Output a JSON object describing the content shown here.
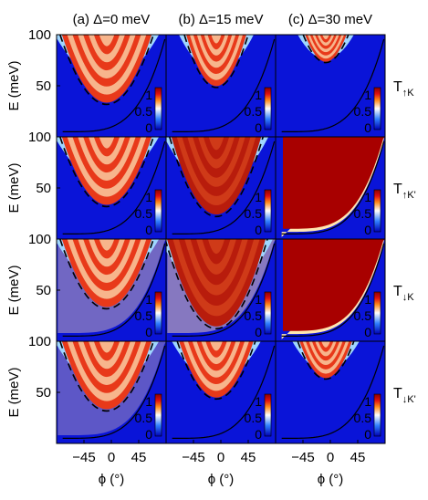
{
  "chart_data": {
    "type": "heatmap",
    "columns": [
      {
        "title": "(a) Δ=0 meV",
        "delta_meV": 0
      },
      {
        "title": "(b) Δ=15 meV",
        "delta_meV": 15
      },
      {
        "title": "(c) Δ=30 meV",
        "delta_meV": 30
      }
    ],
    "rows": [
      {
        "label": "T↑K"
      },
      {
        "label": "T↑K'"
      },
      {
        "label": "T↓K"
      },
      {
        "label": "T↓K'"
      }
    ],
    "xlabel": "ϕ (°)",
    "ylabel": "E (meV)",
    "xticks": [
      "−45",
      "0",
      "45"
    ],
    "xtick_values": [
      -45,
      0,
      45
    ],
    "yticks": [
      "100",
      "50"
    ],
    "ytick_values": [
      100,
      50
    ],
    "xlim": [
      -90,
      90
    ],
    "ylim": [
      0,
      100
    ],
    "colorbar": {
      "ticks": [
        "1",
        "0.5",
        "0"
      ],
      "range": [
        0,
        1
      ]
    },
    "colormap": [
      "#0000b4",
      "#2f7fff",
      "#ffffff",
      "#ff8a1a",
      "#e01010",
      "#8b0000"
    ],
    "panel_bg": "#0a14d8",
    "panels": [
      [
        {
          "mode": "oscillating",
          "emin": 30,
          "width": 0.82,
          "fill_band": 0
        },
        {
          "mode": "oscillating",
          "emin": 47,
          "width": 0.55,
          "fill_band": 0
        },
        {
          "mode": "oscillating",
          "emin": 72,
          "width": 0.38,
          "fill_band": 0
        }
      ],
      [
        {
          "mode": "oscillating",
          "emin": 30,
          "width": 0.82,
          "fill_band": 0
        },
        {
          "mode": "saturated",
          "emin": 20,
          "width": 0.82,
          "fill_band": 0
        },
        {
          "mode": "full",
          "emin": 5,
          "width": 1.0,
          "fill_band": 1
        }
      ],
      [
        {
          "mode": "oscillating",
          "emin": 30,
          "width": 0.82,
          "fill_band": 0.5
        },
        {
          "mode": "saturated",
          "emin": 10,
          "width": 0.9,
          "fill_band": 0.6
        },
        {
          "mode": "full",
          "emin": 5,
          "width": 1.0,
          "fill_band": 1
        }
      ],
      [
        {
          "mode": "oscillating",
          "emin": 30,
          "width": 0.82,
          "fill_band": 0.4
        },
        {
          "mode": "oscillating",
          "emin": 42,
          "width": 0.68,
          "fill_band": 0
        },
        {
          "mode": "oscillating",
          "emin": 62,
          "width": 0.48,
          "fill_band": 0
        }
      ]
    ]
  }
}
